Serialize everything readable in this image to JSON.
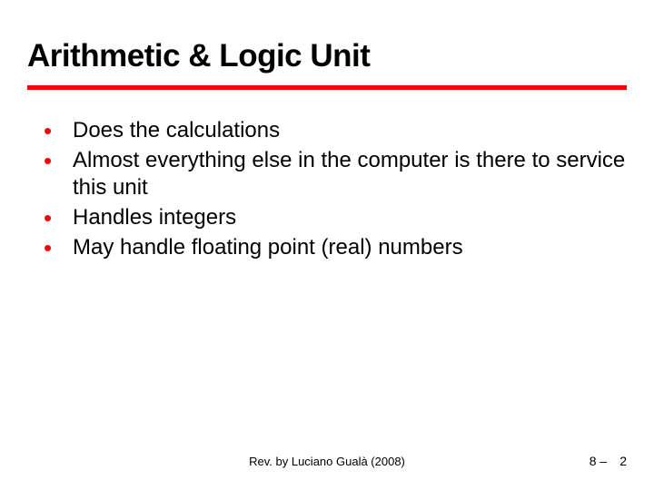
{
  "slide": {
    "title": "Arithmetic & Logic Unit",
    "divider_color": "#ff0000",
    "bullet_color": "#ff0000",
    "background_color": "#ffffff",
    "text_color": "#000000",
    "title_fontsize": 35,
    "body_fontsize": 24,
    "bullets": [
      "Does the calculations",
      "Almost everything else in the computer is there to service this unit",
      "Handles integers",
      "May handle floating point (real) numbers"
    ],
    "footer": {
      "credit": "Rev. by Luciano Gualà (2008)",
      "chapter": "8 –",
      "page": "2"
    }
  }
}
